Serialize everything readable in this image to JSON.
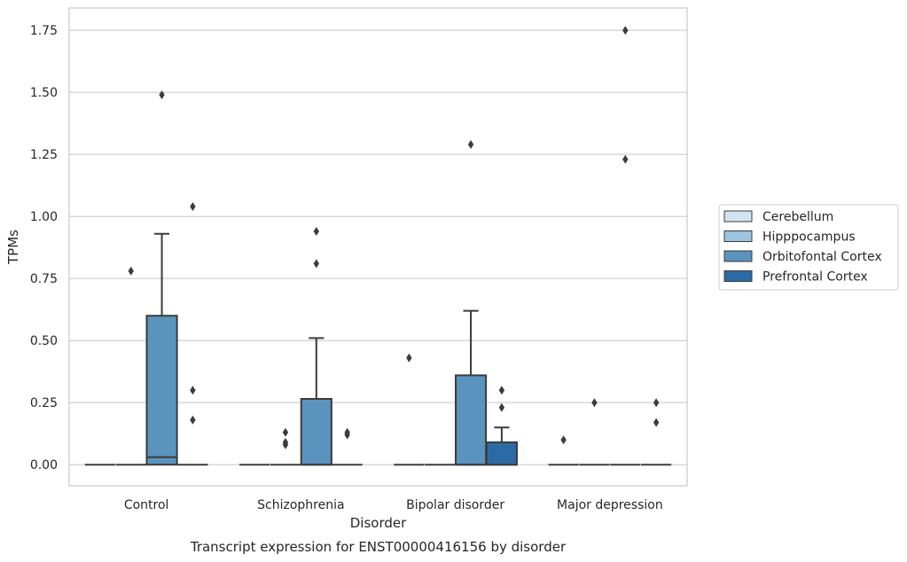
{
  "chart_data": {
    "type": "box",
    "caption": "Transcript expression for ENST00000416156 by disorder",
    "xlabel": "Disorder",
    "ylabel": "TPMs",
    "ylim": [
      -0.085,
      1.84
    ],
    "yticks": [
      0.0,
      0.25,
      0.5,
      0.75,
      1.0,
      1.25,
      1.5,
      1.75
    ],
    "ytick_labels": [
      "0.00",
      "0.25",
      "0.50",
      "0.75",
      "1.00",
      "1.25",
      "1.50",
      "1.75"
    ],
    "grid": "horizontal",
    "legend_position": "right",
    "categories": [
      "Control",
      "Schizophrenia",
      "Bipolar disorder",
      "Major depression"
    ],
    "series": [
      {
        "name": "Cerebellum",
        "color": "#d4e3f1",
        "boxes": [
          {
            "q1": 0,
            "median": 0,
            "q3": 0,
            "whislo": 0,
            "whishi": 0,
            "fliers": []
          },
          {
            "q1": 0,
            "median": 0,
            "q3": 0,
            "whislo": 0,
            "whishi": 0,
            "fliers": []
          },
          {
            "q1": 0,
            "median": 0,
            "q3": 0,
            "whislo": 0,
            "whishi": 0,
            "fliers": [
              0.43
            ]
          },
          {
            "q1": 0,
            "median": 0,
            "q3": 0,
            "whislo": 0,
            "whishi": 0,
            "fliers": [
              0.1
            ]
          }
        ]
      },
      {
        "name": "Hipppocampus",
        "color": "#9dc3de",
        "boxes": [
          {
            "q1": 0,
            "median": 0,
            "q3": 0,
            "whislo": 0,
            "whishi": 0,
            "fliers": [
              0.78
            ]
          },
          {
            "q1": 0,
            "median": 0,
            "q3": 0,
            "whislo": 0,
            "whishi": 0,
            "fliers": [
              0.08,
              0.09,
              0.13
            ]
          },
          {
            "q1": 0,
            "median": 0,
            "q3": 0,
            "whislo": 0,
            "whishi": 0,
            "fliers": []
          },
          {
            "q1": 0,
            "median": 0,
            "q3": 0,
            "whislo": 0,
            "whishi": 0,
            "fliers": [
              0.25
            ]
          }
        ]
      },
      {
        "name": "Orbitofontal Cortex",
        "color": "#5a93be",
        "boxes": [
          {
            "q1": 0,
            "median": 0.03,
            "q3": 0.6,
            "whislo": 0,
            "whishi": 0.93,
            "fliers": [
              1.49
            ]
          },
          {
            "q1": 0,
            "median": 0,
            "q3": 0.265,
            "whislo": 0,
            "whishi": 0.51,
            "fliers": [
              0.81,
              0.94
            ]
          },
          {
            "q1": 0,
            "median": 0,
            "q3": 0.36,
            "whislo": 0,
            "whishi": 0.62,
            "fliers": [
              1.29
            ]
          },
          {
            "q1": 0,
            "median": 0,
            "q3": 0,
            "whislo": 0,
            "whishi": 0,
            "fliers": [
              1.23,
              1.75
            ]
          }
        ]
      },
      {
        "name": "Prefrontal Cortex",
        "color": "#2c6aa5",
        "boxes": [
          {
            "q1": 0,
            "median": 0,
            "q3": 0,
            "whislo": 0,
            "whishi": 0,
            "fliers": [
              0.18,
              0.3,
              1.04
            ]
          },
          {
            "q1": 0,
            "median": 0,
            "q3": 0,
            "whislo": 0,
            "whishi": 0,
            "fliers": [
              0.12,
              0.13
            ]
          },
          {
            "q1": 0,
            "median": 0,
            "q3": 0.09,
            "whislo": 0,
            "whishi": 0.15,
            "fliers": [
              0.23,
              0.3
            ]
          },
          {
            "q1": 0,
            "median": 0,
            "q3": 0,
            "whislo": 0,
            "whishi": 0,
            "fliers": [
              0.17,
              0.25
            ]
          }
        ]
      }
    ]
  }
}
